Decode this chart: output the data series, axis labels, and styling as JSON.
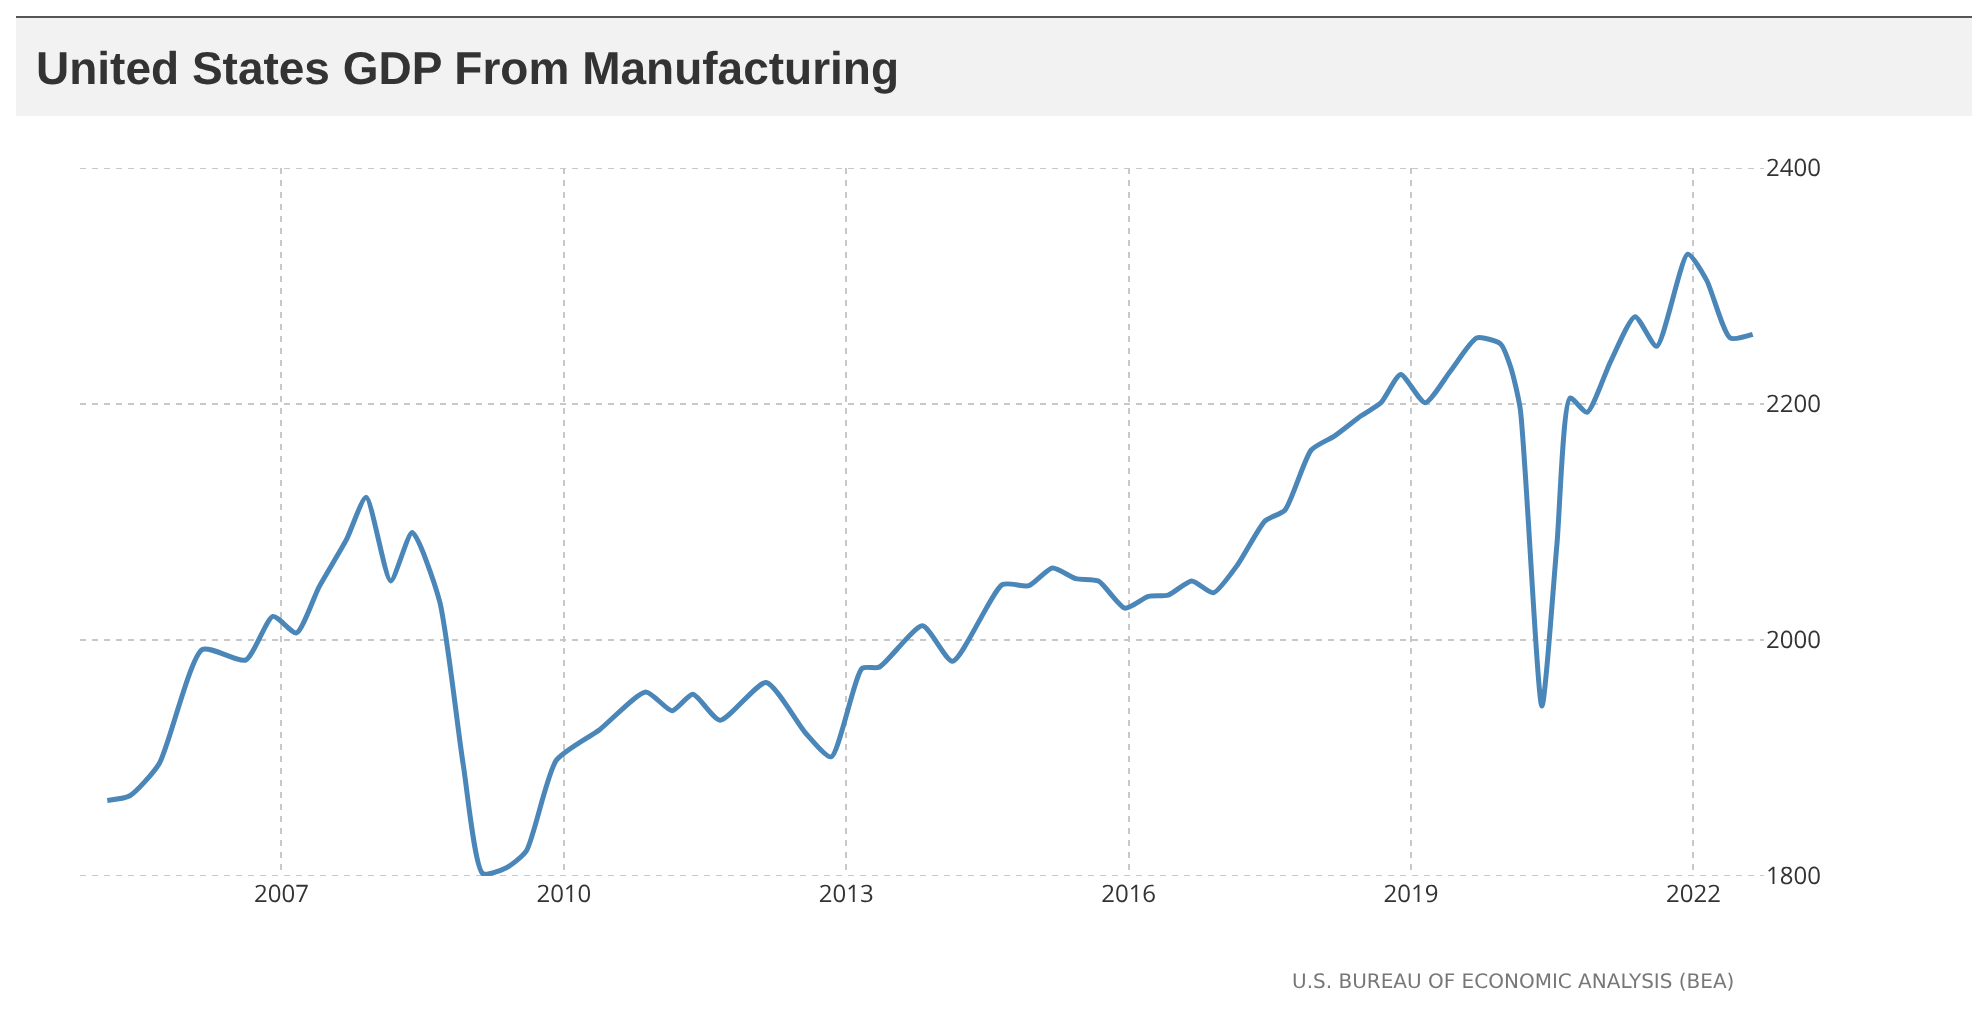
{
  "chart_data": {
    "type": "line",
    "title": "United States GDP From Manufacturing",
    "x": [
      2005.15,
      2005.39,
      2005.7,
      2006.16,
      2006.62,
      2006.91,
      2007.16,
      2007.4,
      2007.69,
      2007.9,
      2008.16,
      2008.39,
      2008.68,
      2008.93,
      2009.14,
      2009.39,
      2009.6,
      2009.92,
      2010.38,
      2010.87,
      2011.15,
      2011.37,
      2011.66,
      2012.15,
      2012.57,
      2012.84,
      2013.17,
      2013.35,
      2013.81,
      2014.13,
      2014.66,
      2014.94,
      2015.19,
      2015.44,
      2015.68,
      2015.96,
      2016.21,
      2016.42,
      2016.67,
      2016.9,
      2017.16,
      2017.45,
      2017.66,
      2017.94,
      2018.19,
      2018.47,
      2018.68,
      2018.89,
      2019.15,
      2019.42,
      2019.7,
      2019.95,
      2020.06,
      2020.16,
      2020.39,
      2020.55,
      2020.69,
      2020.87,
      2021.12,
      2021.38,
      2021.61,
      2021.94,
      2022.14,
      2022.39,
      2022.63
    ],
    "series": [
      {
        "color": "#4a86b8",
        "values": [
          1864,
          1868,
          1895,
          1992,
          1983,
          2020,
          2006,
          2045,
          2085,
          2121,
          2050,
          2091,
          2033,
          1895,
          1802,
          1807,
          1821,
          1898,
          1924,
          1956,
          1940,
          1954,
          1932,
          1964,
          1921,
          1901,
          1976,
          1977,
          2012,
          1982,
          2047,
          2046,
          2061,
          2052,
          2050,
          2027,
          2037,
          2038,
          2050,
          2040,
          2064,
          2101,
          2110,
          2161,
          2173,
          2190,
          2201,
          2225,
          2201,
          2228,
          2256,
          2251,
          2231,
          2196,
          1944,
          2081,
          2205,
          2193,
          2236,
          2274,
          2249,
          2327,
          2305,
          2256,
          2259
        ]
      }
    ],
    "xlim": [
      2004.86,
      2022.75
    ],
    "xticks": [
      2007,
      2010,
      2013,
      2016,
      2019,
      2022
    ],
    "ylim": [
      1800,
      2400
    ],
    "yticks": [
      1800,
      2000,
      2200,
      2400
    ],
    "grid": true,
    "line_style": "solid",
    "marker": "none",
    "annotations": [
      "U.S. BUREAU OF ECONOMIC ANALYSIS (BEA)"
    ]
  }
}
